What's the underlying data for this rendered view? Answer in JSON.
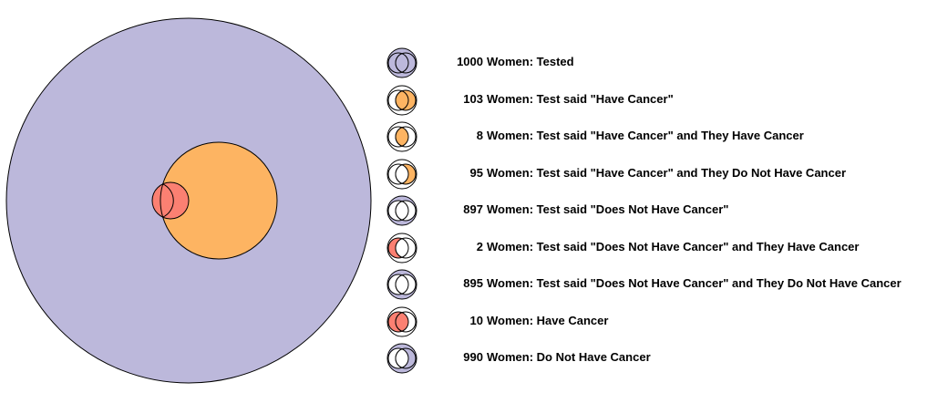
{
  "colors": {
    "tested": "#bcb8db",
    "test_positive": "#fdb462",
    "have_cancer": "#fb8072",
    "white": "#ffffff",
    "outline": "#000000"
  },
  "legend": [
    {
      "count": "1000",
      "label": "Women: Tested",
      "icon": "venn-all-icon"
    },
    {
      "count": "103",
      "label": "Women: Test said \"Have Cancer\"",
      "icon": "venn-test-positive-icon"
    },
    {
      "count": "8",
      "label": "Women: Test said \"Have Cancer\" and They Have Cancer",
      "icon": "venn-true-positive-icon"
    },
    {
      "count": "95",
      "label": "Women: Test said \"Have Cancer\" and They Do Not Have Cancer",
      "icon": "venn-false-positive-icon"
    },
    {
      "count": "897",
      "label": "Women: Test said \"Does Not Have Cancer\"",
      "icon": "venn-test-negative-icon"
    },
    {
      "count": "2",
      "label": "Women: Test said \"Does Not Have Cancer\" and They Have Cancer",
      "icon": "venn-false-negative-icon"
    },
    {
      "count": "895",
      "label": "Women: Test said \"Does Not Have Cancer\" and They Do Not Have Cancer",
      "icon": "venn-true-negative-icon"
    },
    {
      "count": "10",
      "label": "Women: Have Cancer",
      "icon": "venn-have-cancer-icon"
    },
    {
      "count": "990",
      "label": "Women: Do Not Have Cancer",
      "icon": "venn-no-cancer-icon"
    }
  ]
}
